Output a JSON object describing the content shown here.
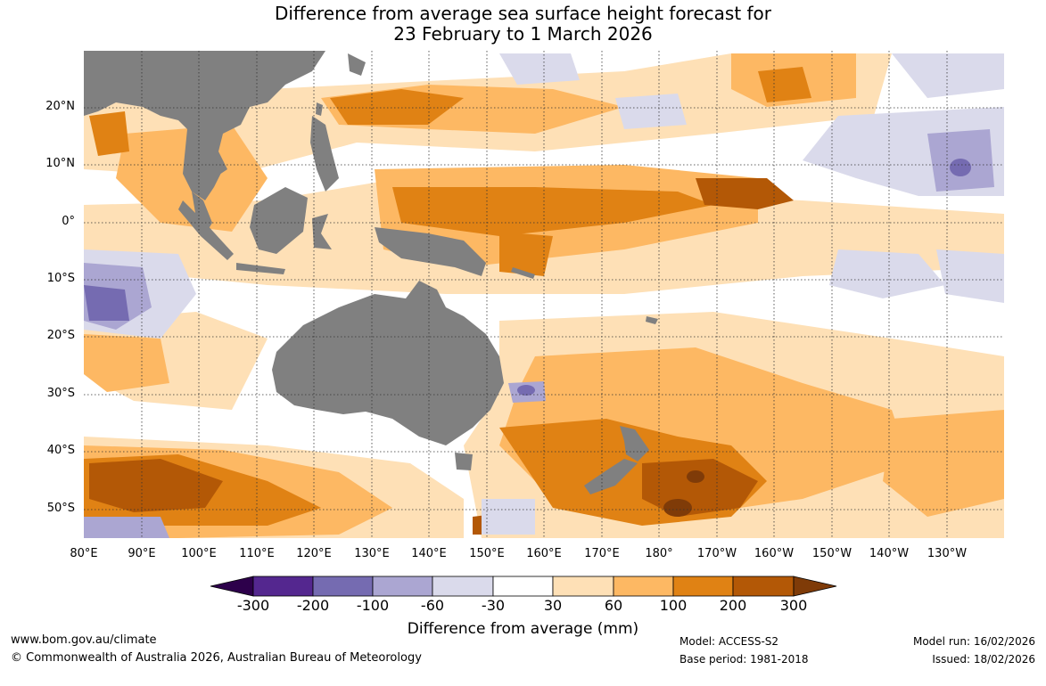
{
  "title_line1": "Difference from average sea surface height forecast for",
  "title_line2": "23 February to 1 March 2026",
  "lat_labels": [
    "20°N",
    "10°N",
    "0°",
    "10°S",
    "20°S",
    "30°S",
    "40°S",
    "50°S"
  ],
  "lon_labels": [
    "80°E",
    "90°E",
    "100°E",
    "110°E",
    "120°E",
    "130°E",
    "140°E",
    "150°E",
    "160°E",
    "170°E",
    "180°",
    "170°W",
    "160°W",
    "150°W",
    "140°W",
    "130°W"
  ],
  "colorbar": {
    "title": "Difference from average (mm)",
    "ticks": [
      "-300",
      "-200",
      "-100",
      "-60",
      "-30",
      "30",
      "60",
      "100",
      "200",
      "300"
    ],
    "colors": [
      "#54278f",
      "#756bb1",
      "#aba6d2",
      "#dadaeb",
      "#ffffff",
      "#fee0b6",
      "#fdb863",
      "#e08214",
      "#b35806"
    ],
    "low_extend_color": "#2d004b",
    "high_extend_color": "#7f3b08"
  },
  "land_color": "#808080",
  "footer": {
    "website": "www.bom.gov.au/climate",
    "copyright": "© Commonwealth of Australia 2026, Australian Bureau of Meteorology",
    "model": "Model: ACCESS-S2",
    "base_period": "Base period: 1981-2018",
    "model_run": "Model run: 16/02/2026",
    "issued": "Issued: 18/02/2026"
  }
}
